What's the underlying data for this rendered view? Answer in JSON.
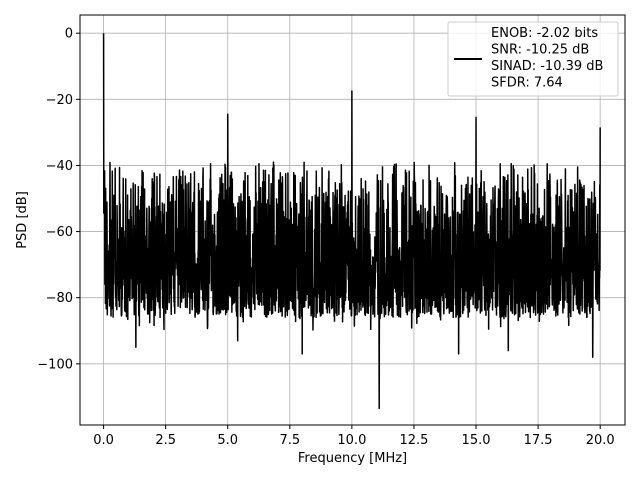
{
  "chart_data": {
    "type": "line",
    "xlabel": "Frequency [MHz]",
    "ylabel": "PSD [dB]",
    "xlim": [
      -0.95,
      21.0
    ],
    "ylim": [
      -118.5,
      5.5
    ],
    "xticks": [
      0.0,
      2.5,
      5.0,
      7.5,
      10.0,
      12.5,
      15.0,
      17.5,
      20.0
    ],
    "xtick_labels": [
      "0.0",
      "2.5",
      "5.0",
      "7.5",
      "10.0",
      "12.5",
      "15.0",
      "17.5",
      "20.0"
    ],
    "yticks": [
      0,
      -20,
      -40,
      -60,
      -80,
      -100
    ],
    "ytick_labels": [
      "0",
      "−20",
      "−40",
      "−60",
      "−80",
      "−100"
    ],
    "grid": true,
    "legend": {
      "location": "upper right",
      "entries": [
        "ENOB: -2.02 bits",
        "SNR: -10.25 dB",
        "SINAD: -10.39 dB",
        "SFDR: 7.64"
      ]
    },
    "series": [
      {
        "color": "#000000",
        "noise_floor": {
          "x_range": [
            0.0,
            20.0
          ],
          "upper_envelope_db": -38,
          "lower_envelope_db": -80,
          "sharp_dips": [
            [
              1.3,
              -95
            ],
            [
              5.4,
              -93
            ],
            [
              8.0,
              -97
            ],
            [
              11.1,
              -113.5
            ],
            [
              14.3,
              -97
            ],
            [
              16.3,
              -96
            ],
            [
              19.7,
              -98
            ]
          ]
        },
        "peaks": [
          {
            "x": 0.0,
            "y": 0.0
          },
          {
            "x": 5.0,
            "y": -24.5
          },
          {
            "x": 10.0,
            "y": -17.5
          },
          {
            "x": 15.0,
            "y": -25.5
          },
          {
            "x": 20.0,
            "y": -28.5
          }
        ]
      }
    ]
  }
}
